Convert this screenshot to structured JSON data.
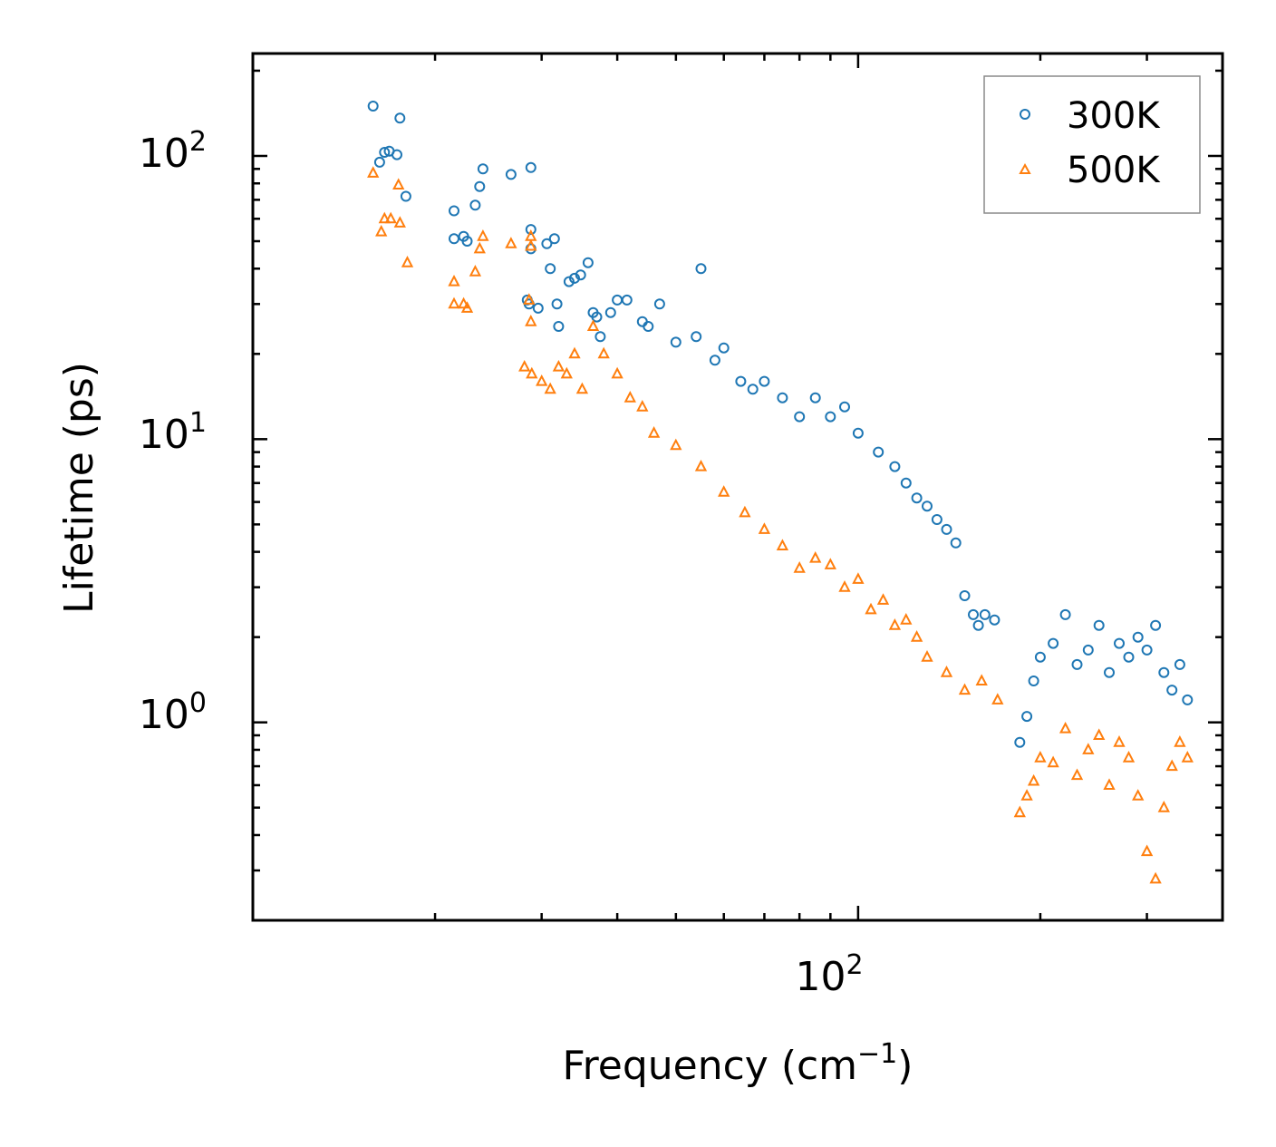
{
  "chart_data": {
    "type": "scatter",
    "title": "",
    "xlabel": "Frequency (cm",
    "xlabel_sup": "−1",
    "xlabel_close": ")",
    "ylabel": "Lifetime (ps)",
    "xscale": "log",
    "yscale": "log",
    "xlim": [
      10,
      400
    ],
    "ylim": [
      0.2,
      230
    ],
    "x_tick_labels": [
      {
        "base": "10",
        "exp": "2",
        "value": 100
      }
    ],
    "y_tick_labels": [
      {
        "base": "10",
        "exp": "2",
        "value": 100
      },
      {
        "base": "10",
        "exp": "1",
        "value": 10
      },
      {
        "base": "10",
        "exp": "0",
        "value": 1
      }
    ],
    "legend": {
      "position": "top-right"
    },
    "series": [
      {
        "name": "300K",
        "marker": "circle-open",
        "color": "#1f77b4",
        "points": [
          [
            15.8,
            150
          ],
          [
            16.2,
            95
          ],
          [
            16.5,
            103
          ],
          [
            16.8,
            104
          ],
          [
            17.3,
            101
          ],
          [
            17.5,
            136
          ],
          [
            17.9,
            72
          ],
          [
            21.5,
            64
          ],
          [
            21.5,
            51
          ],
          [
            22.3,
            52
          ],
          [
            22.6,
            50
          ],
          [
            23.3,
            67
          ],
          [
            23.7,
            78
          ],
          [
            24.0,
            90
          ],
          [
            26.7,
            86
          ],
          [
            28.8,
            91
          ],
          [
            28.8,
            55
          ],
          [
            28.8,
            47
          ],
          [
            28.4,
            31
          ],
          [
            28.6,
            30
          ],
          [
            29.6,
            29
          ],
          [
            30.6,
            49
          ],
          [
            31.5,
            51
          ],
          [
            31.0,
            40
          ],
          [
            31.8,
            30
          ],
          [
            32.0,
            25
          ],
          [
            33.3,
            36
          ],
          [
            34.0,
            37
          ],
          [
            34.8,
            38
          ],
          [
            35.8,
            42
          ],
          [
            36.5,
            28
          ],
          [
            37.0,
            27
          ],
          [
            37.5,
            23
          ],
          [
            39.0,
            28
          ],
          [
            40.0,
            31
          ],
          [
            41.5,
            31
          ],
          [
            44.0,
            26
          ],
          [
            45.0,
            25
          ],
          [
            47.0,
            30
          ],
          [
            50.0,
            22
          ],
          [
            54.0,
            23
          ],
          [
            55.0,
            40
          ],
          [
            58.0,
            19
          ],
          [
            60.0,
            21
          ],
          [
            64.0,
            16
          ],
          [
            67.0,
            15
          ],
          [
            70.0,
            16
          ],
          [
            75.0,
            14
          ],
          [
            80.0,
            12
          ],
          [
            85.0,
            14
          ],
          [
            90.0,
            12
          ],
          [
            95.0,
            13
          ],
          [
            100.0,
            10.5
          ],
          [
            108.0,
            9
          ],
          [
            115.0,
            8
          ],
          [
            120.0,
            7
          ],
          [
            125.0,
            6.2
          ],
          [
            130.0,
            5.8
          ],
          [
            135.0,
            5.2
          ],
          [
            140.0,
            4.8
          ],
          [
            145.0,
            4.3
          ],
          [
            150.0,
            2.8
          ],
          [
            155.0,
            2.4
          ],
          [
            158.0,
            2.2
          ],
          [
            162.0,
            2.4
          ],
          [
            168.0,
            2.3
          ],
          [
            185.0,
            0.85
          ],
          [
            190.0,
            1.05
          ],
          [
            195.0,
            1.4
          ],
          [
            200.0,
            1.7
          ],
          [
            210.0,
            1.9
          ],
          [
            220.0,
            2.4
          ],
          [
            230.0,
            1.6
          ],
          [
            240.0,
            1.8
          ],
          [
            250.0,
            2.2
          ],
          [
            260.0,
            1.5
          ],
          [
            270.0,
            1.9
          ],
          [
            280.0,
            1.7
          ],
          [
            290.0,
            2.0
          ],
          [
            300.0,
            1.8
          ],
          [
            310.0,
            2.2
          ],
          [
            320.0,
            1.5
          ],
          [
            330.0,
            1.3
          ],
          [
            340.0,
            1.6
          ],
          [
            350.0,
            1.2
          ]
        ]
      },
      {
        "name": "500K",
        "marker": "triangle-open",
        "color": "#ff7f0e",
        "points": [
          [
            15.8,
            87
          ],
          [
            16.3,
            54
          ],
          [
            16.5,
            60
          ],
          [
            16.9,
            60
          ],
          [
            17.4,
            79
          ],
          [
            17.5,
            58
          ],
          [
            18.0,
            42
          ],
          [
            21.5,
            36
          ],
          [
            21.5,
            30
          ],
          [
            22.3,
            30
          ],
          [
            22.6,
            29
          ],
          [
            23.3,
            39
          ],
          [
            23.7,
            47
          ],
          [
            24.0,
            52
          ],
          [
            26.7,
            49
          ],
          [
            28.8,
            52
          ],
          [
            28.8,
            48
          ],
          [
            28.6,
            31
          ],
          [
            28.8,
            26
          ],
          [
            28.1,
            18
          ],
          [
            28.9,
            17
          ],
          [
            30.0,
            16
          ],
          [
            31.0,
            15
          ],
          [
            32.0,
            18
          ],
          [
            33.0,
            17
          ],
          [
            34.0,
            20
          ],
          [
            35.0,
            15
          ],
          [
            36.5,
            25
          ],
          [
            38.0,
            20
          ],
          [
            40.0,
            17
          ],
          [
            42.0,
            14
          ],
          [
            44.0,
            13
          ],
          [
            46.0,
            10.5
          ],
          [
            50.0,
            9.5
          ],
          [
            55.0,
            8
          ],
          [
            60.0,
            6.5
          ],
          [
            65.0,
            5.5
          ],
          [
            70.0,
            4.8
          ],
          [
            75.0,
            4.2
          ],
          [
            80.0,
            3.5
          ],
          [
            85.0,
            3.8
          ],
          [
            90.0,
            3.6
          ],
          [
            95.0,
            3.0
          ],
          [
            100.0,
            3.2
          ],
          [
            105.0,
            2.5
          ],
          [
            110.0,
            2.7
          ],
          [
            115.0,
            2.2
          ],
          [
            120.0,
            2.3
          ],
          [
            125.0,
            2.0
          ],
          [
            130.0,
            1.7
          ],
          [
            140.0,
            1.5
          ],
          [
            150.0,
            1.3
          ],
          [
            160.0,
            1.4
          ],
          [
            170.0,
            1.2
          ],
          [
            185.0,
            0.48
          ],
          [
            190.0,
            0.55
          ],
          [
            195.0,
            0.62
          ],
          [
            200.0,
            0.75
          ],
          [
            210.0,
            0.72
          ],
          [
            220.0,
            0.95
          ],
          [
            230.0,
            0.65
          ],
          [
            240.0,
            0.8
          ],
          [
            250.0,
            0.9
          ],
          [
            260.0,
            0.6
          ],
          [
            270.0,
            0.85
          ],
          [
            280.0,
            0.75
          ],
          [
            290.0,
            0.55
          ],
          [
            300.0,
            0.35
          ],
          [
            310.0,
            0.28
          ],
          [
            320.0,
            0.5
          ],
          [
            330.0,
            0.7
          ],
          [
            340.0,
            0.85
          ],
          [
            350.0,
            0.75
          ]
        ]
      }
    ]
  }
}
